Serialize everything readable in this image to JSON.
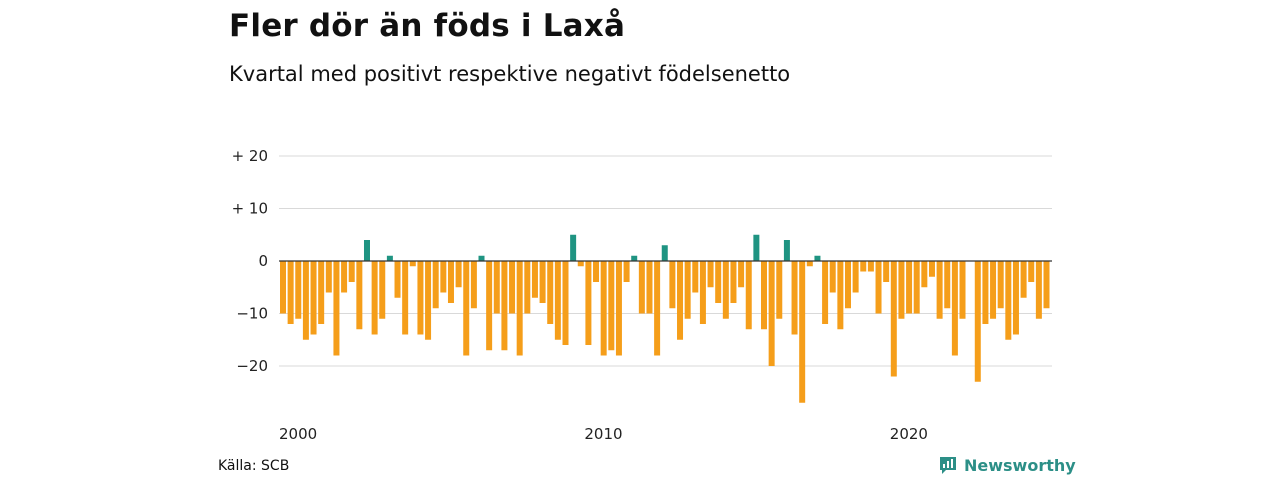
{
  "title": "Fler dör än föds i Laxå",
  "subtitle": "Kvartal med positivt respektive negativt födelsenetto",
  "source": "Källa: SCB",
  "brand": "Newsworthy",
  "colors": {
    "positive": "#1f9482",
    "negative": "#f59e1a",
    "grid": "#d9d9d9",
    "brand": "#2c8f87"
  },
  "chart_data": {
    "type": "bar",
    "title": "Fler dör än föds i Laxå",
    "subtitle": "Kvartal med positivt respektive negativt födelsenetto",
    "xlabel": "",
    "ylabel": "",
    "grid": true,
    "x_ticks": [
      {
        "label": "2000",
        "year": 2000
      },
      {
        "label": "2010",
        "year": 2010
      },
      {
        "label": "2020",
        "year": 2020
      }
    ],
    "y_ticks": [
      {
        "label": "+ 20",
        "value": 20
      },
      {
        "label": "+ 10",
        "value": 10
      },
      {
        "label": "0",
        "value": 0
      },
      {
        "label": "−10",
        "value": -10
      },
      {
        "label": "−20",
        "value": -20
      }
    ],
    "ylim": [
      -28,
      20
    ],
    "start_year": 2000,
    "values": [
      -10,
      -12,
      -11,
      -15,
      -14,
      -12,
      -6,
      -18,
      -6,
      -4,
      -13,
      4,
      -14,
      -11,
      1,
      -7,
      -14,
      -1,
      -14,
      -15,
      -9,
      -6,
      -8,
      -5,
      -18,
      -9,
      1,
      -17,
      -10,
      -17,
      -10,
      -18,
      -10,
      -7,
      -8,
      -12,
      -15,
      -16,
      5,
      -1,
      -16,
      -4,
      -18,
      -17,
      -18,
      -4,
      1,
      -10,
      -10,
      -18,
      3,
      -9,
      -15,
      -11,
      -6,
      -12,
      -5,
      -8,
      -11,
      -8,
      -5,
      -13,
      5,
      -13,
      -20,
      -11,
      4,
      -14,
      -27,
      -1,
      1,
      -12,
      -6,
      -13,
      -9,
      -6,
      -2,
      -2,
      -10,
      -4,
      -22,
      -11,
      -10,
      -10,
      -5,
      -3,
      -11,
      -9,
      -18,
      -11,
      0,
      -23,
      -12,
      -11,
      -9,
      -15,
      -14,
      -7,
      -4,
      -11,
      -9
    ]
  }
}
